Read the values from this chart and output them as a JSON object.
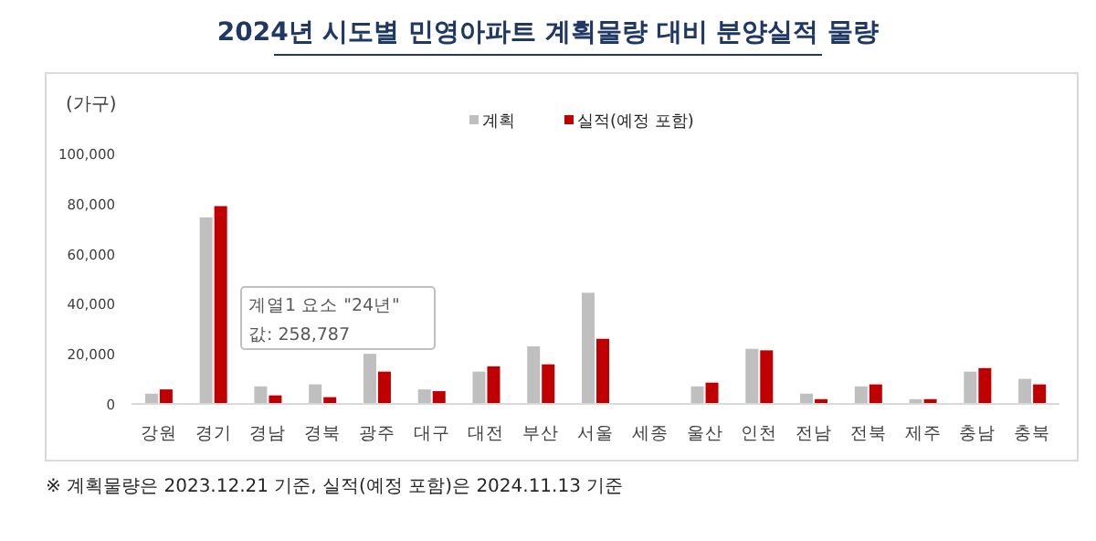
{
  "chart_data": {
    "type": "bar",
    "title": "2024년 시도별 민영아파트 계획물량 대비 분양실적 물량",
    "ylabel": "(가구)",
    "categories": [
      "강원",
      "경기",
      "경남",
      "경북",
      "광주",
      "대구",
      "대전",
      "부산",
      "서울",
      "세종",
      "울산",
      "인천",
      "전남",
      "전북",
      "제주",
      "충남",
      "충북"
    ],
    "series": [
      {
        "name": "계획",
        "color": "#bfbfbf",
        "values": [
          4100,
          74500,
          7000,
          7800,
          20000,
          5800,
          12900,
          23000,
          44400,
          0,
          7000,
          22000,
          4100,
          7000,
          1900,
          12900,
          10000
        ]
      },
      {
        "name": "실적(예정 포함)",
        "color": "#c00000",
        "values": [
          5800,
          79000,
          3400,
          2700,
          12900,
          5100,
          15000,
          15800,
          26000,
          0,
          8500,
          21400,
          1900,
          7800,
          1900,
          14300,
          7800
        ]
      }
    ],
    "ylim": [
      0,
      100000
    ],
    "yticks": [
      {
        "value": 0,
        "label": "0"
      },
      {
        "value": 20000,
        "label": "20,000"
      },
      {
        "value": 40000,
        "label": "40,000"
      },
      {
        "value": 60000,
        "label": "60,000"
      },
      {
        "value": 80000,
        "label": "80,000"
      },
      {
        "value": 100000,
        "label": "100,000"
      }
    ],
    "grid": false,
    "legend": "top",
    "annotations": [
      "계열1 요소 \"24년\"",
      "값: 258,787",
      "※ 계획물량은 2023.12.21 기준, 실적(예정 포함)은 2024.11.13 기준"
    ]
  }
}
